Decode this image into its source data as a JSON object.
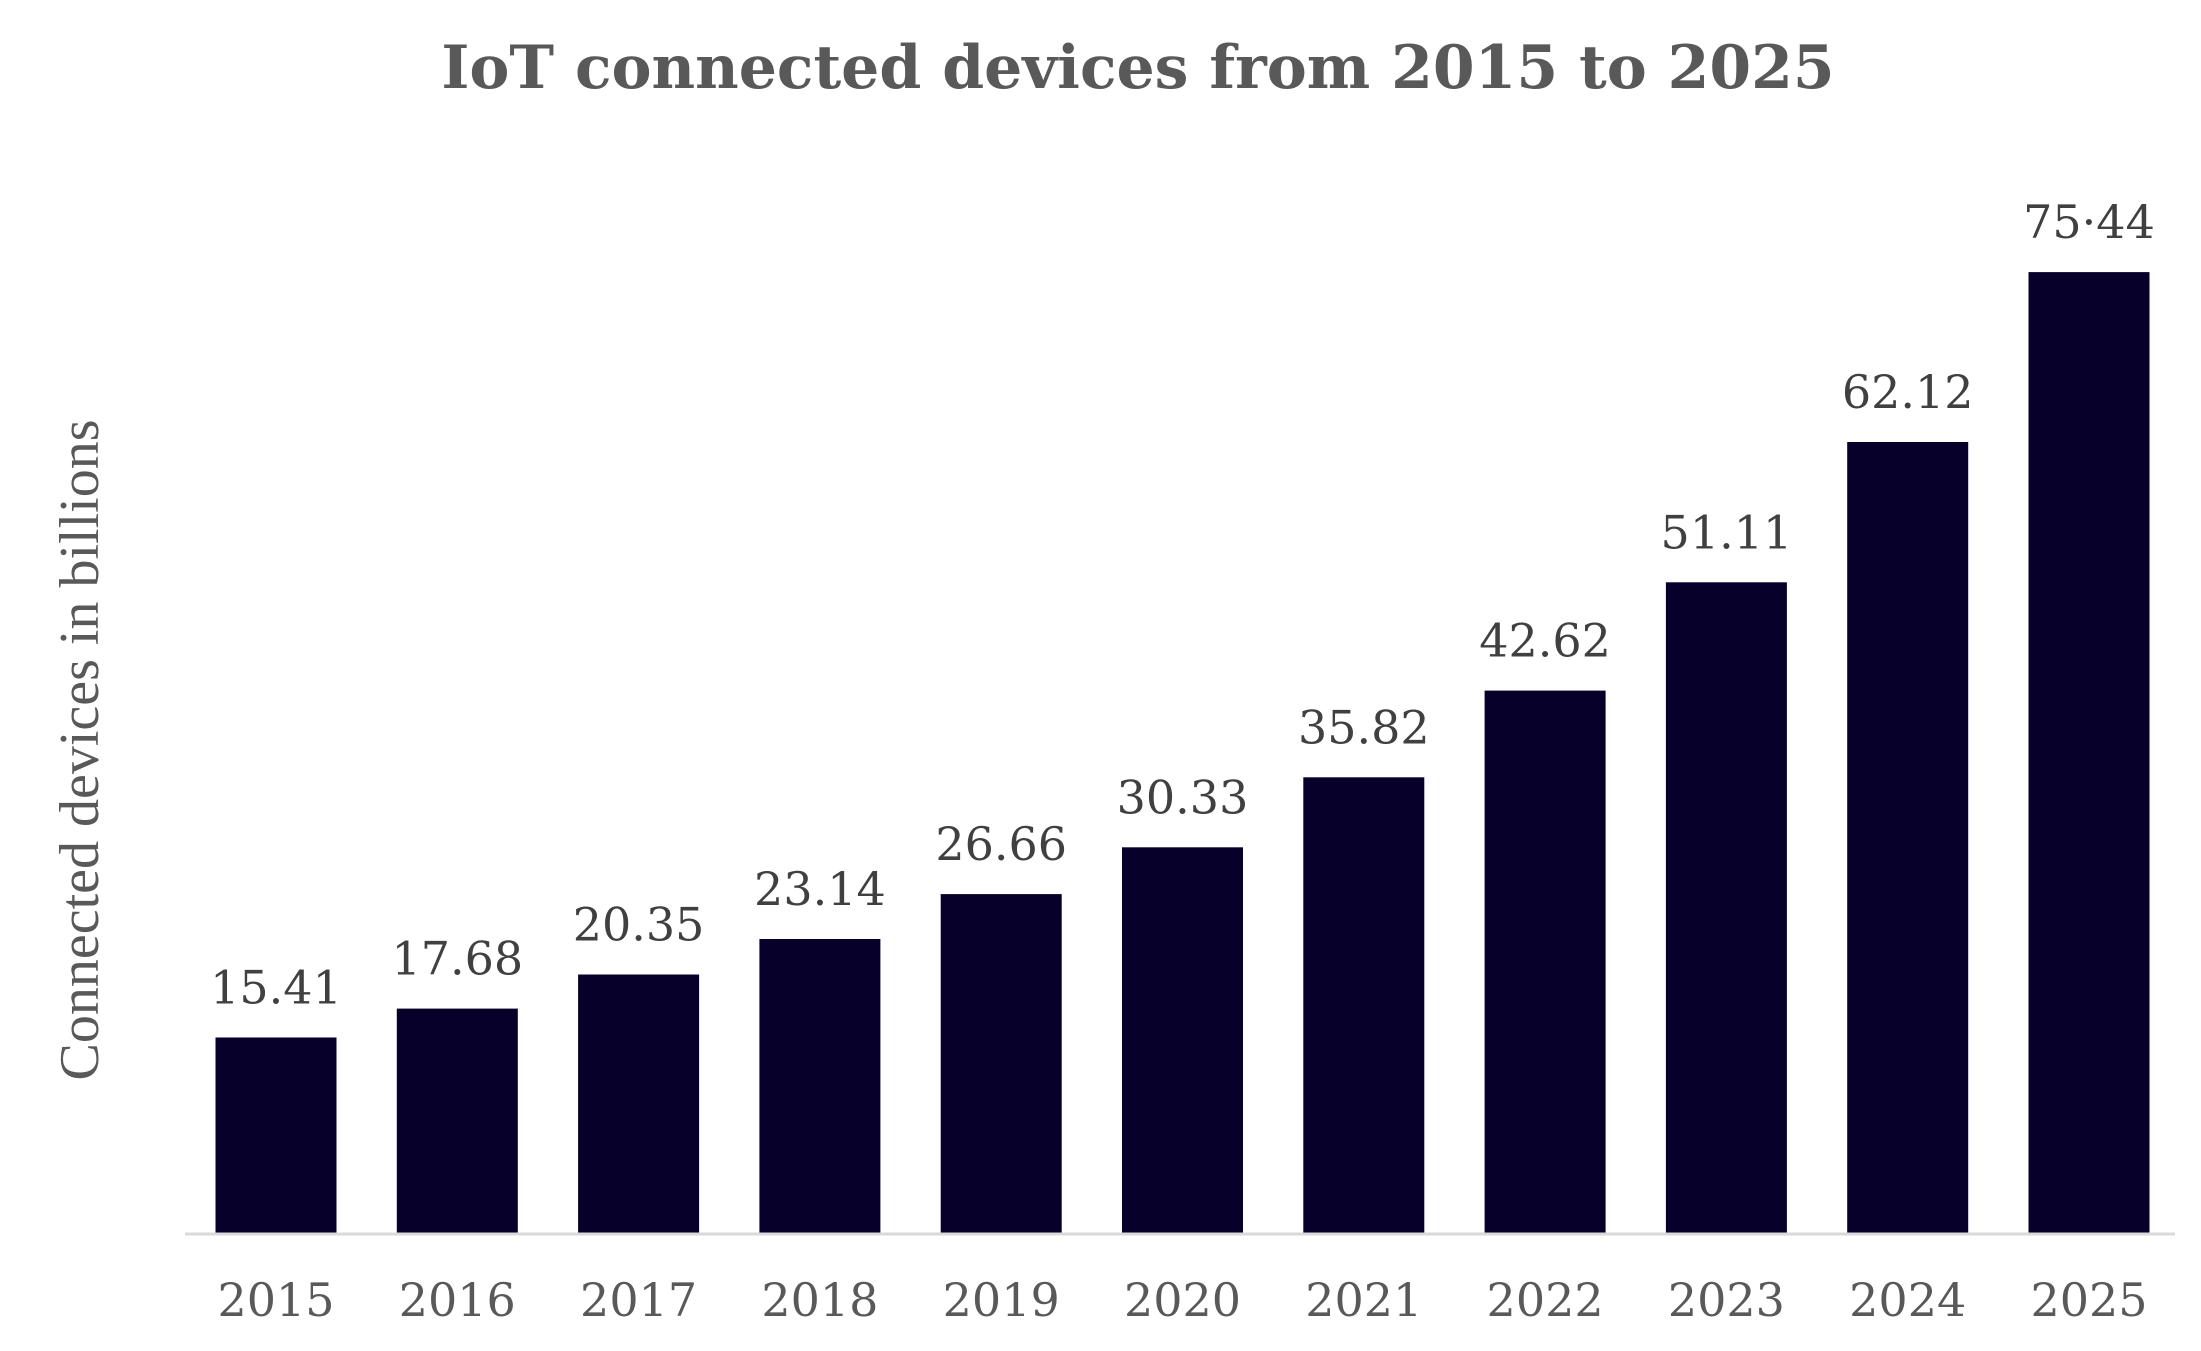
{
  "chart_data": {
    "type": "bar",
    "title": "IoT connected devices from 2015 to 2025",
    "xlabel": "",
    "ylabel": "Connected devices in billions",
    "categories": [
      "2015",
      "2016",
      "2017",
      "2018",
      "2019",
      "2020",
      "2021",
      "2022",
      "2023",
      "2024",
      "2025"
    ],
    "values": [
      15.41,
      17.68,
      20.35,
      23.14,
      26.66,
      30.33,
      35.82,
      42.62,
      51.11,
      62.12,
      75.44
    ],
    "value_labels": [
      "15.41",
      "17.68",
      "20.35",
      "23.14",
      "26.66",
      "30.33",
      "35.82",
      "42.62",
      "51.11",
      "62.12",
      "75·44"
    ],
    "ylim": [
      0,
      80
    ],
    "grid": false,
    "legend": "none",
    "colors": {
      "bar": "#06002a",
      "axis_line": "#d9d9d9",
      "title": "#595959",
      "value_label": "#404040",
      "tick_label": "#595959"
    }
  }
}
